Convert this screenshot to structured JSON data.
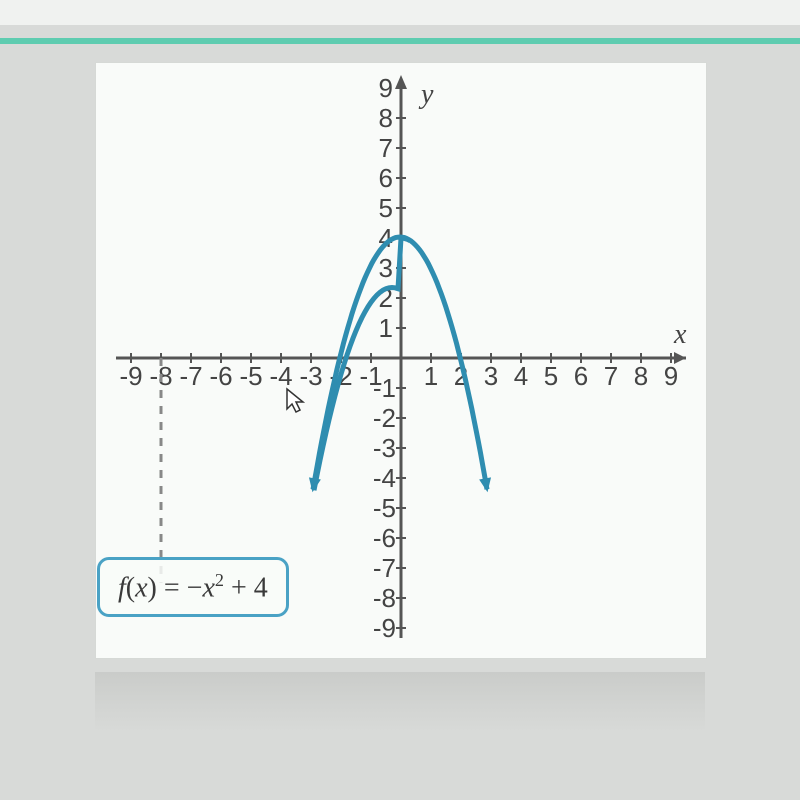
{
  "chart": {
    "type": "line",
    "function_label_plain": "f(x) = -x² + 4",
    "xlim": [
      -9,
      9
    ],
    "ylim": [
      -9,
      9
    ],
    "xtick_step": 1,
    "ytick_step": 1,
    "x_axis_label": "x",
    "y_axis_label": "y",
    "curve_color": "#2f8db0",
    "curve_width": 5,
    "axis_color": "#555555",
    "background_color": "#f9fbf9",
    "border_color": "#d6d9d6",
    "formula_border_color": "#4aa2c5",
    "tick_label_fontsize": 26,
    "axis_label_fontsize": 28,
    "x_ticks": [
      -9,
      -8,
      -7,
      -6,
      -5,
      -4,
      -3,
      -2,
      -1,
      1,
      2,
      3,
      4,
      5,
      6,
      7,
      8,
      9
    ],
    "y_ticks_pos": [
      1,
      2,
      3,
      4,
      5,
      6,
      7,
      8,
      9
    ],
    "y_ticks_neg": [
      -1,
      -2,
      -3,
      -4,
      -5,
      -6,
      -7,
      -8,
      -9
    ],
    "parabola_vertex": [
      0,
      4
    ],
    "parabola_draw_xrange": [
      -2.9,
      2.9
    ],
    "dashed_vertical_x": -8,
    "dashed_vertical_yrange": [
      -7.5,
      0
    ],
    "accent_green": "#5eccb0"
  },
  "formula": {
    "f": "f",
    "open": "(",
    "x1": "x",
    "close": ")",
    "eq": " = ",
    "neg": "−",
    "x2": "x",
    "exp": "2",
    "plus": " + 4"
  }
}
